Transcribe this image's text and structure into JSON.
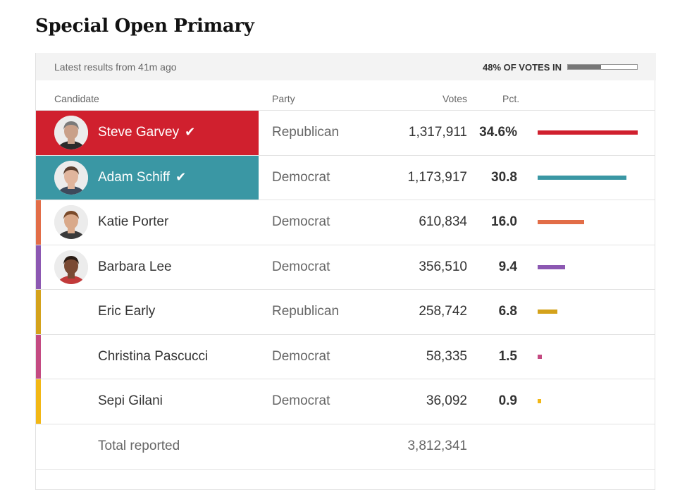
{
  "title": "Special Open Primary",
  "status": {
    "latest": "Latest results from 41m ago",
    "votes_in_label": "48% OF VOTES IN",
    "votes_in_fraction": 0.48
  },
  "headers": {
    "candidate": "Candidate",
    "party": "Party",
    "votes": "Votes",
    "pct": "Pct."
  },
  "candidates": [
    {
      "name": "Steve Garvey",
      "party": "Republican",
      "votes": "1,317,911",
      "pct": "34.6%",
      "pct_value": 34.6,
      "color": "#d0202e",
      "winner": true,
      "has_photo": true
    },
    {
      "name": "Adam Schiff",
      "party": "Democrat",
      "votes": "1,173,917",
      "pct": "30.8",
      "pct_value": 30.8,
      "color": "#3a97a4",
      "winner": true,
      "has_photo": true
    },
    {
      "name": "Katie Porter",
      "party": "Democrat",
      "votes": "610,834",
      "pct": "16.0",
      "pct_value": 16.0,
      "color": "#e26d47",
      "winner": false,
      "has_photo": true
    },
    {
      "name": "Barbara Lee",
      "party": "Democrat",
      "votes": "356,510",
      "pct": "9.4",
      "pct_value": 9.4,
      "color": "#8c58b2",
      "winner": false,
      "has_photo": true
    },
    {
      "name": "Eric Early",
      "party": "Republican",
      "votes": "258,742",
      "pct": "6.8",
      "pct_value": 6.8,
      "color": "#d4a21b",
      "winner": false,
      "has_photo": false
    },
    {
      "name": "Christina Pascucci",
      "party": "Democrat",
      "votes": "58,335",
      "pct": "1.5",
      "pct_value": 1.5,
      "color": "#c44a82",
      "winner": false,
      "has_photo": false
    },
    {
      "name": "Sepi Gilani",
      "party": "Democrat",
      "votes": "36,092",
      "pct": "0.9",
      "pct_value": 0.9,
      "color": "#f2b715",
      "winner": false,
      "has_photo": false
    }
  ],
  "total": {
    "label": "Total reported",
    "votes": "3,812,341"
  },
  "check_glyph": "✔",
  "icons": {
    "winner": "check-icon",
    "candidate_photo": "person-photo"
  }
}
